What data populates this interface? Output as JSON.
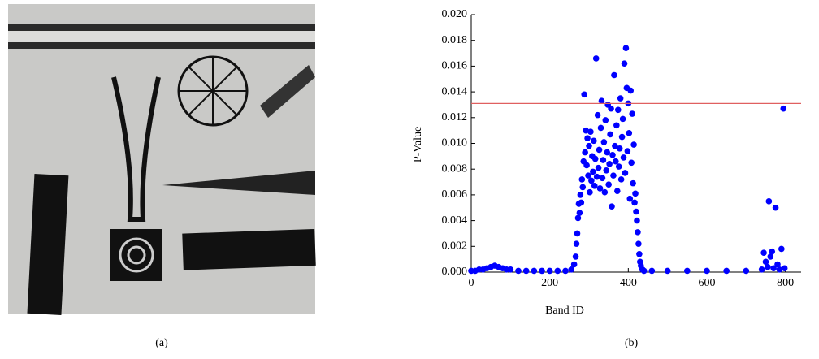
{
  "panel_labels": [
    "(a)",
    "(b)"
  ],
  "chart_data": {
    "type": "scatter",
    "xlabel": "Band ID",
    "ylabel": "P-Value",
    "color": "#0000ff",
    "xlim": [
      0,
      840
    ],
    "ylim": [
      0,
      0.02
    ],
    "xticks": [
      0,
      200,
      400,
      600,
      800
    ],
    "yticks": [
      {
        "value": 0,
        "label": "0.000"
      },
      {
        "value": 0.002,
        "label": "0.002"
      },
      {
        "value": 0.004,
        "label": "0.004"
      },
      {
        "value": 0.006,
        "label": "0.006"
      },
      {
        "value": 0.008,
        "label": "0.008"
      },
      {
        "value": 0.01,
        "label": "0.010"
      },
      {
        "value": 0.012,
        "label": "0.012"
      },
      {
        "value": 0.014,
        "label": "0.014"
      },
      {
        "value": 0.016,
        "label": "0.016"
      },
      {
        "value": 0.018,
        "label": "0.018"
      },
      {
        "value": 0.02,
        "label": "0.020"
      }
    ],
    "threshold": 0.0131,
    "threshold_color": "#e06060",
    "x": [
      0,
      10,
      20,
      30,
      40,
      50,
      60,
      70,
      80,
      90,
      100,
      120,
      140,
      160,
      180,
      200,
      220,
      240,
      255,
      262,
      266,
      268,
      270,
      272,
      274,
      276,
      278,
      280,
      282,
      284,
      286,
      288,
      290,
      292,
      294,
      296,
      298,
      300,
      302,
      304,
      306,
      308,
      310,
      312,
      314,
      316,
      318,
      320,
      322,
      324,
      326,
      328,
      330,
      332,
      334,
      336,
      338,
      340,
      342,
      344,
      346,
      348,
      350,
      352,
      354,
      356,
      358,
      360,
      362,
      364,
      366,
      368,
      370,
      372,
      374,
      376,
      378,
      380,
      382,
      384,
      386,
      388,
      390,
      392,
      394,
      396,
      398,
      400,
      402,
      404,
      406,
      408,
      410,
      412,
      414,
      416,
      418,
      420,
      422,
      424,
      426,
      428,
      430,
      432,
      436,
      440,
      460,
      500,
      550,
      600,
      650,
      700,
      740,
      745,
      750,
      755,
      758,
      762,
      766,
      770,
      775,
      780,
      785,
      790,
      795,
      798
    ],
    "y": [
      0.0001,
      0.0001,
      0.0002,
      0.0002,
      0.0003,
      0.0004,
      0.0005,
      0.0004,
      0.0003,
      0.0002,
      0.0002,
      0.0001,
      0.0001,
      0.0001,
      0.0001,
      0.0001,
      0.0001,
      0.0001,
      0.0002,
      0.0006,
      0.0012,
      0.0022,
      0.003,
      0.0042,
      0.0053,
      0.0046,
      0.006,
      0.0054,
      0.0072,
      0.0066,
      0.0086,
      0.0138,
      0.0093,
      0.011,
      0.0083,
      0.0104,
      0.0075,
      0.0098,
      0.0062,
      0.0109,
      0.0071,
      0.009,
      0.0078,
      0.0102,
      0.0067,
      0.0088,
      0.0166,
      0.0074,
      0.0122,
      0.0081,
      0.0095,
      0.0065,
      0.0112,
      0.0133,
      0.0073,
      0.0087,
      0.0101,
      0.0062,
      0.0118,
      0.0079,
      0.0093,
      0.013,
      0.0068,
      0.0084,
      0.0107,
      0.0127,
      0.0051,
      0.0091,
      0.0075,
      0.0153,
      0.0098,
      0.0086,
      0.0114,
      0.0063,
      0.0126,
      0.0082,
      0.0096,
      0.0135,
      0.0072,
      0.0105,
      0.0119,
      0.0089,
      0.0162,
      0.0077,
      0.0174,
      0.0143,
      0.0094,
      0.0131,
      0.0108,
      0.0057,
      0.0141,
      0.0085,
      0.0123,
      0.0069,
      0.0099,
      0.0054,
      0.0061,
      0.0047,
      0.004,
      0.0031,
      0.0022,
      0.0014,
      0.0008,
      0.0005,
      0.0002,
      0.0001,
      0.0001,
      0.0001,
      0.0001,
      0.0001,
      0.0001,
      0.0001,
      0.0002,
      0.0015,
      0.0008,
      0.0004,
      0.0055,
      0.0012,
      0.0016,
      0.0003,
      0.005,
      0.0006,
      0.0002,
      0.0018,
      0.0127,
      0.0003
    ]
  }
}
